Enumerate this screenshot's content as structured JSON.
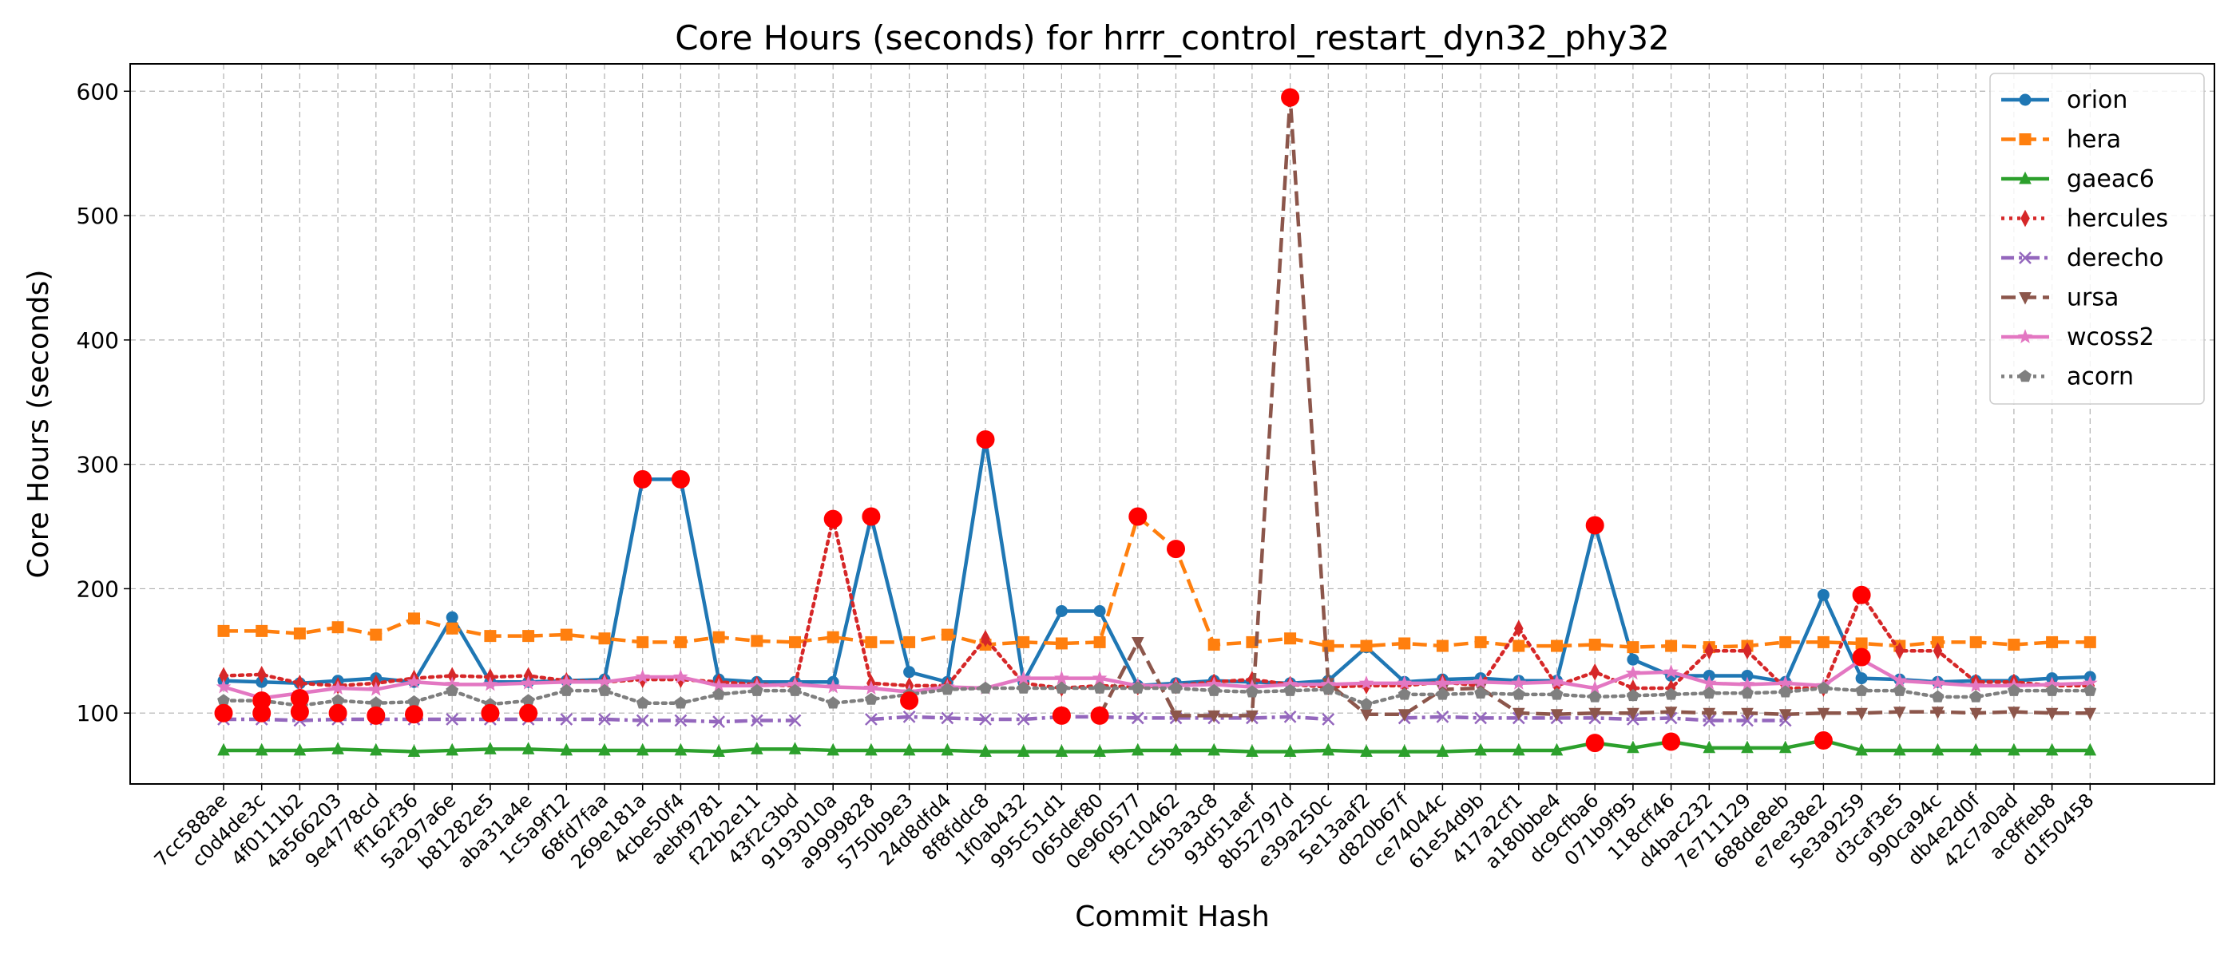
{
  "chart_data": {
    "type": "line",
    "title": "Core Hours (seconds) for hrrr_control_restart_dyn32_phy32",
    "xlabel": "Commit Hash",
    "ylabel": "Core Hours (seconds)",
    "ylim": [
      43,
      622
    ],
    "yticks": [
      100,
      200,
      300,
      400,
      500,
      600
    ],
    "grid": true,
    "legend_position": "top-right",
    "categories": [
      "7cc588ae",
      "c0d4de3c",
      "4f0111b2",
      "4a566203",
      "9e4778cd",
      "ff162f36",
      "5a297a6e",
      "b81282e5",
      "aba31a4e",
      "1c5a9f12",
      "68fd7faa",
      "269e181a",
      "4cbe50f4",
      "aebf9781",
      "f22b2e11",
      "43f2c3bd",
      "9193010a",
      "a9999828",
      "5750b9e3",
      "24d8dfd4",
      "8f8fddc8",
      "1f0ab432",
      "995c51d1",
      "065def80",
      "0e960577",
      "f9c10462",
      "c5b3a3c8",
      "93d51aef",
      "8b52797d",
      "e39a250c",
      "5e13aaf2",
      "d820b67f",
      "ce74044c",
      "61e54d9b",
      "417a2cf1",
      "a180bbe4",
      "dc9cfba6",
      "071b9f95",
      "118cff46",
      "d4bac232",
      "7e711129",
      "688de8eb",
      "e7ee38e2",
      "5e3a9259",
      "d3caf3e5",
      "990ca94c",
      "db4e2d0f",
      "42c7a0ad",
      "ac8ffeb8",
      "d1f50458"
    ],
    "series": [
      {
        "name": "orion",
        "color": "#1f77b4",
        "dash": "solid",
        "marker": "circle",
        "values": [
          126,
          125,
          124,
          126,
          128,
          125,
          177,
          125,
          125,
          126,
          127,
          288,
          288,
          127,
          125,
          125,
          125,
          258,
          133,
          125,
          320,
          125,
          182,
          182,
          122,
          124,
          126,
          125,
          124,
          126,
          153,
          125,
          127,
          128,
          126,
          126,
          251,
          143,
          130,
          130,
          130,
          125,
          195,
          128,
          127,
          125,
          126,
          126,
          128,
          129
        ]
      },
      {
        "name": "hera",
        "color": "#ff7f0e",
        "dash": "dashed",
        "marker": "square",
        "values": [
          166,
          166,
          164,
          169,
          163,
          176,
          168,
          162,
          162,
          163,
          160,
          157,
          157,
          161,
          158,
          157,
          161,
          157,
          157,
          163,
          155,
          157,
          156,
          157,
          258,
          232,
          155,
          157,
          160,
          154,
          154,
          156,
          154,
          157,
          154,
          154,
          155,
          153,
          154,
          153,
          154,
          157,
          157,
          156,
          154,
          157,
          157,
          155,
          157,
          157
        ]
      },
      {
        "name": "gaeac6",
        "color": "#2ca02c",
        "dash": "solid",
        "marker": "triangle-up",
        "values": [
          70,
          70,
          70,
          71,
          70,
          69,
          70,
          71,
          71,
          70,
          70,
          70,
          70,
          69,
          71,
          71,
          70,
          70,
          70,
          70,
          69,
          69,
          69,
          69,
          70,
          70,
          70,
          69,
          69,
          70,
          69,
          69,
          69,
          70,
          70,
          70,
          76,
          72,
          77,
          72,
          72,
          72,
          78,
          70,
          70,
          70,
          70,
          70,
          70,
          70
        ]
      },
      {
        "name": "hercules",
        "color": "#d62728",
        "dash": "dotted",
        "marker": "diamond",
        "values": [
          130,
          131,
          124,
          122,
          124,
          128,
          130,
          129,
          130,
          126,
          125,
          127,
          127,
          125,
          123,
          122,
          256,
          124,
          122,
          122,
          160,
          124,
          120,
          122,
          121,
          122,
          125,
          127,
          123,
          121,
          122,
          122,
          125,
          122,
          168,
          122,
          133,
          120,
          120,
          150,
          150,
          120,
          120,
          195,
          150,
          150,
          125,
          125,
          122,
          122
        ]
      },
      {
        "name": "derecho",
        "color": "#9467bd",
        "dash": "dashdot",
        "marker": "x",
        "values": [
          95,
          95,
          94,
          95,
          95,
          95,
          95,
          95,
          95,
          95,
          95,
          94,
          94,
          93,
          94,
          94,
          null,
          95,
          97,
          96,
          95,
          95,
          97,
          97,
          96,
          96,
          96,
          96,
          97,
          95,
          null,
          96,
          97,
          96,
          96,
          96,
          96,
          95,
          96,
          94,
          94,
          94,
          null,
          null,
          null,
          null,
          null,
          null,
          null,
          null
        ]
      },
      {
        "name": "ursa",
        "color": "#8c564b",
        "dash": "dashed",
        "marker": "triangle-down",
        "values": [
          null,
          null,
          null,
          null,
          null,
          null,
          null,
          null,
          null,
          null,
          null,
          null,
          null,
          null,
          null,
          null,
          null,
          null,
          null,
          null,
          null,
          null,
          null,
          98,
          157,
          98,
          98,
          98,
          595,
          124,
          99,
          99,
          119,
          120,
          100,
          99,
          100,
          100,
          101,
          100,
          100,
          99,
          100,
          100,
          101,
          101,
          100,
          101,
          100,
          100
        ]
      },
      {
        "name": "wcoss2",
        "color": "#e377c2",
        "dash": "solid",
        "marker": "star",
        "values": [
          121,
          112,
          116,
          120,
          119,
          125,
          123,
          123,
          124,
          125,
          125,
          129,
          129,
          122,
          122,
          123,
          121,
          120,
          117,
          121,
          120,
          128,
          128,
          128,
          122,
          122,
          123,
          121,
          123,
          123,
          124,
          124,
          124,
          125,
          124,
          125,
          120,
          132,
          133,
          124,
          123,
          124,
          122,
          143,
          126,
          124,
          122,
          122,
          123,
          124
        ]
      },
      {
        "name": "acorn",
        "color": "#7f7f7f",
        "dash": "dotted",
        "marker": "pentagon",
        "values": [
          110,
          110,
          106,
          110,
          108,
          109,
          118,
          107,
          110,
          118,
          118,
          108,
          108,
          115,
          118,
          118,
          108,
          111,
          115,
          119,
          120,
          120,
          120,
          120,
          120,
          120,
          118,
          117,
          118,
          119,
          107,
          115,
          115,
          116,
          115,
          115,
          113,
          114,
          115,
          116,
          116,
          117,
          120,
          118,
          118,
          113,
          113,
          118,
          118,
          118
        ]
      }
    ],
    "highlights": [
      {
        "x": "7cc588ae",
        "y": 100
      },
      {
        "x": "c0d4de3c",
        "y": 110
      },
      {
        "x": "c0d4de3c",
        "y": 100
      },
      {
        "x": "4f0111b2",
        "y": 112
      },
      {
        "x": "4f0111b2",
        "y": 101
      },
      {
        "x": "4a566203",
        "y": 100
      },
      {
        "x": "9e4778cd",
        "y": 98
      },
      {
        "x": "ff162f36",
        "y": 99
      },
      {
        "x": "b81282e5",
        "y": 100
      },
      {
        "x": "aba31a4e",
        "y": 100
      },
      {
        "x": "269e181a",
        "y": 288
      },
      {
        "x": "4cbe50f4",
        "y": 288
      },
      {
        "x": "9193010a",
        "y": 256
      },
      {
        "x": "a9999828",
        "y": 258
      },
      {
        "x": "5750b9e3",
        "y": 110
      },
      {
        "x": "8f8fddc8",
        "y": 320
      },
      {
        "x": "995c51d1",
        "y": 98
      },
      {
        "x": "065def80",
        "y": 98
      },
      {
        "x": "0e960577",
        "y": 258
      },
      {
        "x": "f9c10462",
        "y": 232
      },
      {
        "x": "8b52797d",
        "y": 595
      },
      {
        "x": "dc9cfba6",
        "y": 251
      },
      {
        "x": "dc9cfba6",
        "y": 76
      },
      {
        "x": "118cff46",
        "y": 77
      },
      {
        "x": "e7ee38e2",
        "y": 78
      },
      {
        "x": "5e3a9259",
        "y": 195
      },
      {
        "x": "5e3a9259",
        "y": 145
      }
    ]
  }
}
